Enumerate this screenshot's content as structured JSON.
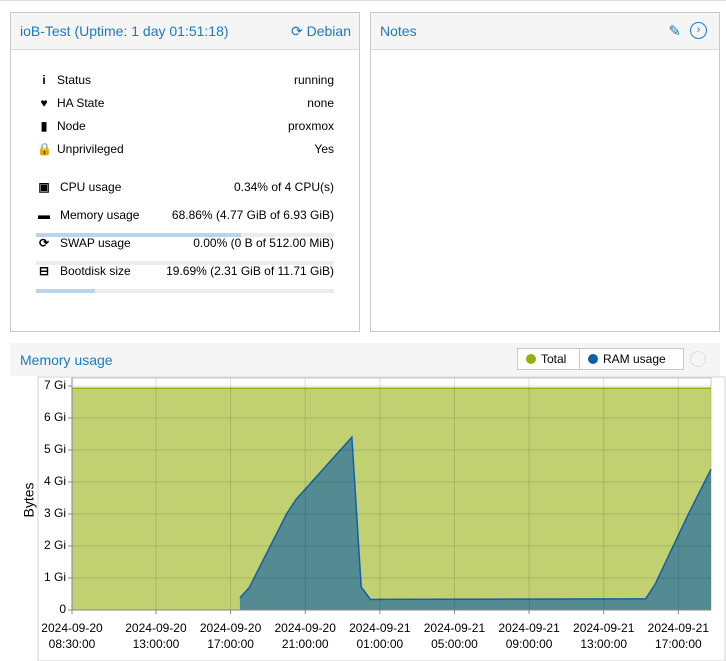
{
  "summary": {
    "title": "ioB-Test (Uptime: 1 day 01:51:18)",
    "os": "Debian",
    "rows": [
      {
        "label": "Status",
        "value": "running"
      },
      {
        "label": "HA State",
        "value": "none"
      },
      {
        "label": "Node",
        "value": "proxmox"
      },
      {
        "label": "Unprivileged",
        "value": "Yes"
      }
    ],
    "usage": [
      {
        "label": "CPU usage",
        "value": "0.34% of 4 CPU(s)"
      },
      {
        "label": "Memory usage",
        "value": "68.86% (4.77 GiB of 6.93 GiB)",
        "percent": 68.86
      },
      {
        "label": "SWAP usage",
        "value": "0.00% (0 B of 512.00 MiB)",
        "percent": 0
      },
      {
        "label": "Bootdisk size",
        "value": "19.69% (2.31 GiB of 11.71 GiB)",
        "percent": 19.69
      }
    ]
  },
  "notes": {
    "title": "Notes"
  },
  "chart_data": {
    "type": "area",
    "title": "Memory usage",
    "y_label": "Bytes",
    "x": [
      "2024-09-20 08:30",
      "2024-09-20 17:30",
      "2024-09-20 18:00",
      "2024-09-20 20:00",
      "2024-09-20 20:30",
      "2024-09-20 23:30",
      "2024-09-21 00:00",
      "2024-09-21 00:30",
      "2024-09-21 15:15",
      "2024-09-21 15:45",
      "2024-09-21 17:30",
      "2024-09-21 18:45"
    ],
    "xlim": [
      "2024-09-20 08:30",
      "2024-09-21 18:45"
    ],
    "xticks": [
      {
        "value": "2024-09-20 08:30",
        "label": "2024-09-20\n08:30:00"
      },
      {
        "value": "2024-09-20 13:00",
        "label": "2024-09-20\n13:00:00"
      },
      {
        "value": "2024-09-20 17:00",
        "label": "2024-09-20\n17:00:00"
      },
      {
        "value": "2024-09-20 21:00",
        "label": "2024-09-20\n21:00:00"
      },
      {
        "value": "2024-09-21 01:00",
        "label": "2024-09-21\n01:00:00"
      },
      {
        "value": "2024-09-21 05:00",
        "label": "2024-09-21\n05:00:00"
      },
      {
        "value": "2024-09-21 09:00",
        "label": "2024-09-21\n09:00:00"
      },
      {
        "value": "2024-09-21 13:00",
        "label": "2024-09-21\n13:00:00"
      },
      {
        "value": "2024-09-21 17:00",
        "label": "2024-09-21\n17:00:00"
      }
    ],
    "ylim": [
      0,
      7.25
    ],
    "yticks": [
      0,
      {
        "value": 1,
        "label": "1 Gi"
      },
      {
        "value": 2,
        "label": "2 Gi"
      },
      {
        "value": 3,
        "label": "3 Gi"
      },
      {
        "value": 4,
        "label": "4 Gi"
      },
      {
        "value": 5,
        "label": "5 Gi"
      },
      {
        "value": 6,
        "label": "6 Gi"
      },
      {
        "value": 7,
        "label": "7 Gi"
      }
    ],
    "grid": true,
    "series": [
      {
        "name": "Total",
        "color": "#94ae0a",
        "values": [
          6.93,
          6.93,
          6.93,
          6.93,
          6.93,
          6.93,
          6.93,
          6.93,
          6.93,
          6.93,
          6.93,
          6.93
        ]
      },
      {
        "name": "RAM usage",
        "color": "#115fa6",
        "values": [
          null,
          0.38,
          0.7,
          3.0,
          3.45,
          5.4,
          0.72,
          0.33,
          0.35,
          0.8,
          2.95,
          4.4
        ]
      }
    ]
  }
}
